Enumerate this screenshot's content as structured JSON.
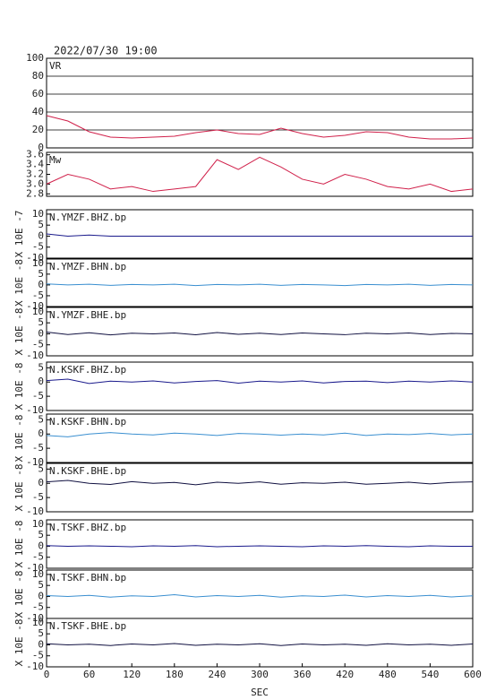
{
  "chart_data": [
    {
      "type": "line",
      "title": "2022/07/30 19:00",
      "label": "VR",
      "ylim": [
        0,
        100
      ],
      "yticks": [
        0,
        20,
        40,
        60,
        80,
        100
      ],
      "grid": true,
      "xlim": [
        0,
        600
      ],
      "x": [
        0,
        30,
        60,
        90,
        120,
        150,
        180,
        210,
        240,
        270,
        300,
        330,
        360,
        390,
        420,
        450,
        480,
        510,
        540,
        570,
        600
      ],
      "series": [
        {
          "color": "#d0204a",
          "values": [
            36,
            30,
            18,
            12,
            11,
            12,
            13,
            17,
            20,
            16,
            15,
            22,
            16,
            12,
            14,
            18,
            17,
            12,
            10,
            10,
            11
          ]
        }
      ]
    },
    {
      "type": "line",
      "label": "Mw",
      "ylim": [
        2.75,
        3.65
      ],
      "yticks": [
        2.8,
        {
          "value": 3,
          "label": "3.0"
        },
        3.2,
        3.4,
        3.6
      ],
      "xlim": [
        0,
        600
      ],
      "x": [
        0,
        30,
        60,
        90,
        120,
        150,
        180,
        210,
        240,
        270,
        300,
        330,
        360,
        390,
        420,
        450,
        480,
        510,
        540,
        570,
        600
      ],
      "series": [
        {
          "color": "#d0204a",
          "values": [
            3.0,
            3.2,
            3.1,
            2.9,
            2.95,
            2.85,
            2.9,
            2.95,
            3.5,
            3.3,
            3.55,
            3.35,
            3.1,
            3.0,
            3.2,
            3.1,
            2.95,
            2.9,
            3.0,
            2.85,
            2.9
          ]
        }
      ]
    },
    {
      "type": "line",
      "label": "N.YMZF.BHZ.bp",
      "ylabel": "X 10E -7",
      "ylim": [
        -10,
        12
      ],
      "yticks": [
        -10,
        -5,
        0,
        5,
        10
      ],
      "xlim": [
        0,
        600
      ],
      "x": [
        0,
        30,
        60,
        90,
        120,
        150,
        180,
        210,
        240,
        270,
        300,
        330,
        360,
        390,
        420,
        450,
        480,
        510,
        540,
        570,
        600
      ],
      "series": [
        {
          "color": "#1a1a8c",
          "values": [
            1,
            0,
            0.5,
            0,
            0,
            0,
            0,
            0,
            0,
            0,
            0,
            0,
            0,
            0,
            0,
            0,
            0,
            0,
            0,
            0,
            0
          ]
        }
      ]
    },
    {
      "type": "line",
      "label": "N.YMZF.BHN.bp",
      "ylabel": "X 10E -8",
      "ylim": [
        -10,
        12
      ],
      "yticks": [
        -10,
        -5,
        0,
        5,
        10
      ],
      "xlim": [
        0,
        600
      ],
      "x": [
        0,
        30,
        60,
        90,
        120,
        150,
        180,
        210,
        240,
        270,
        300,
        330,
        360,
        390,
        420,
        450,
        480,
        510,
        540,
        570,
        600
      ],
      "series": [
        {
          "color": "#3a8fd0",
          "values": [
            0.5,
            0,
            0.3,
            -0.2,
            0.2,
            0,
            0.3,
            -0.3,
            0.2,
            0,
            0.3,
            -0.2,
            0.2,
            0,
            -0.3,
            0.2,
            0,
            0.3,
            -0.2,
            0.2,
            0
          ]
        }
      ]
    },
    {
      "type": "line",
      "label": "N.YMZF.BHE.bp",
      "ylabel": "X 10E -8",
      "ylim": [
        -10,
        12
      ],
      "yticks": [
        -10,
        -5,
        0,
        5,
        10
      ],
      "xlim": [
        0,
        600
      ],
      "x": [
        0,
        30,
        60,
        90,
        120,
        150,
        180,
        210,
        240,
        270,
        300,
        330,
        360,
        390,
        420,
        450,
        480,
        510,
        540,
        570,
        600
      ],
      "series": [
        {
          "color": "#101040",
          "values": [
            0.8,
            -0.3,
            0.5,
            -0.5,
            0.3,
            0,
            0.4,
            -0.4,
            0.6,
            -0.2,
            0.3,
            -0.3,
            0.4,
            0,
            -0.4,
            0.3,
            0,
            0.4,
            -0.3,
            0.2,
            0
          ]
        }
      ]
    },
    {
      "type": "line",
      "label": "N.KSKF.BHZ.bp",
      "ylabel": "X 10E -8",
      "ylim": [
        -10,
        7
      ],
      "yticks": [
        -10,
        -5,
        0,
        5
      ],
      "xlim": [
        0,
        600
      ],
      "x": [
        0,
        30,
        60,
        90,
        120,
        150,
        180,
        210,
        240,
        270,
        300,
        330,
        360,
        390,
        420,
        450,
        480,
        510,
        540,
        570,
        600
      ],
      "series": [
        {
          "color": "#1a1a8c",
          "values": [
            0.5,
            1,
            -0.5,
            0.3,
            0,
            0.4,
            -0.3,
            0.2,
            0.5,
            -0.4,
            0.3,
            0,
            0.4,
            -0.3,
            0.2,
            0.3,
            -0.2,
            0.3,
            0,
            0.4,
            0
          ]
        }
      ]
    },
    {
      "type": "line",
      "label": "N.KSKF.BHN.bp",
      "ylabel": "X 10E -8",
      "ylim": [
        -10,
        7
      ],
      "yticks": [
        -10,
        -5,
        0,
        5
      ],
      "xlim": [
        0,
        600
      ],
      "x": [
        0,
        30,
        60,
        90,
        120,
        150,
        180,
        210,
        240,
        270,
        300,
        330,
        360,
        390,
        420,
        450,
        480,
        510,
        540,
        570,
        600
      ],
      "series": [
        {
          "color": "#3a8fd0",
          "values": [
            -0.5,
            -1,
            0,
            0.5,
            0,
            -0.3,
            0.3,
            0,
            -0.5,
            0.2,
            0,
            -0.4,
            0,
            -0.3,
            0.3,
            -0.5,
            0,
            -0.2,
            0.2,
            -0.3,
            0
          ]
        }
      ]
    },
    {
      "type": "line",
      "label": "N.KSKF.BHE.bp",
      "ylabel": "X 10E -8",
      "ylim": [
        -10,
        7
      ],
      "yticks": [
        -10,
        -5,
        0,
        5
      ],
      "xlim": [
        0,
        600
      ],
      "x": [
        0,
        30,
        60,
        90,
        120,
        150,
        180,
        210,
        240,
        270,
        300,
        330,
        360,
        390,
        420,
        450,
        480,
        510,
        540,
        570,
        600
      ],
      "series": [
        {
          "color": "#101040",
          "values": [
            0.5,
            1,
            0,
            -0.4,
            0.6,
            0,
            0.3,
            -0.5,
            0.4,
            0,
            0.5,
            -0.3,
            0.2,
            0,
            0.4,
            -0.3,
            0,
            0.4,
            -0.2,
            0.3,
            0.5
          ]
        }
      ]
    },
    {
      "type": "line",
      "label": "N.TSKF.BHZ.bp",
      "ylabel": "X 10E -8",
      "ylim": [
        -10,
        12
      ],
      "yticks": [
        -10,
        -5,
        0,
        5,
        10
      ],
      "xlim": [
        0,
        600
      ],
      "x": [
        0,
        30,
        60,
        90,
        120,
        150,
        180,
        210,
        240,
        270,
        300,
        330,
        360,
        390,
        420,
        450,
        480,
        510,
        540,
        570,
        600
      ],
      "series": [
        {
          "color": "#1a1a8c",
          "values": [
            0.3,
            0,
            0.2,
            0,
            -0.2,
            0.2,
            0,
            0.3,
            -0.2,
            0,
            0.2,
            0,
            -0.2,
            0.2,
            0,
            0.3,
            0,
            -0.2,
            0.2,
            0,
            0
          ]
        }
      ]
    },
    {
      "type": "line",
      "label": "N.TSKF.BHN.bp",
      "ylabel": "X 10E -8",
      "ylim": [
        -10,
        12
      ],
      "yticks": [
        -10,
        -5,
        0,
        5,
        10
      ],
      "xlim": [
        0,
        600
      ],
      "x": [
        0,
        30,
        60,
        90,
        120,
        150,
        180,
        210,
        240,
        270,
        300,
        330,
        360,
        390,
        420,
        450,
        480,
        510,
        540,
        570,
        600
      ],
      "series": [
        {
          "color": "#3a8fd0",
          "values": [
            0.4,
            0,
            0.5,
            -0.3,
            0.3,
            0,
            0.8,
            -0.2,
            0.4,
            0,
            0.5,
            -0.3,
            0.3,
            0,
            0.6,
            -0.2,
            0.4,
            0,
            0.5,
            -0.2,
            0.3
          ]
        }
      ]
    },
    {
      "type": "line",
      "label": "N.TSKF.BHE.bp",
      "ylabel": "X 10E -8",
      "xlabel": "SEC",
      "ylim": [
        -10,
        12
      ],
      "yticks": [
        -10,
        -5,
        0,
        5,
        10
      ],
      "xlim": [
        0,
        600
      ],
      "xticks": [
        0,
        60,
        120,
        180,
        240,
        300,
        360,
        420,
        480,
        540,
        600
      ],
      "x": [
        0,
        30,
        60,
        90,
        120,
        150,
        180,
        210,
        240,
        270,
        300,
        330,
        360,
        390,
        420,
        450,
        480,
        510,
        540,
        570,
        600
      ],
      "series": [
        {
          "color": "#101040",
          "values": [
            0.5,
            0,
            0.3,
            -0.3,
            0.4,
            0,
            0.6,
            -0.2,
            0.3,
            0,
            0.5,
            -0.3,
            0.4,
            0,
            0.3,
            -0.2,
            0.5,
            0,
            0.3,
            -0.2,
            0.4
          ]
        }
      ]
    }
  ]
}
